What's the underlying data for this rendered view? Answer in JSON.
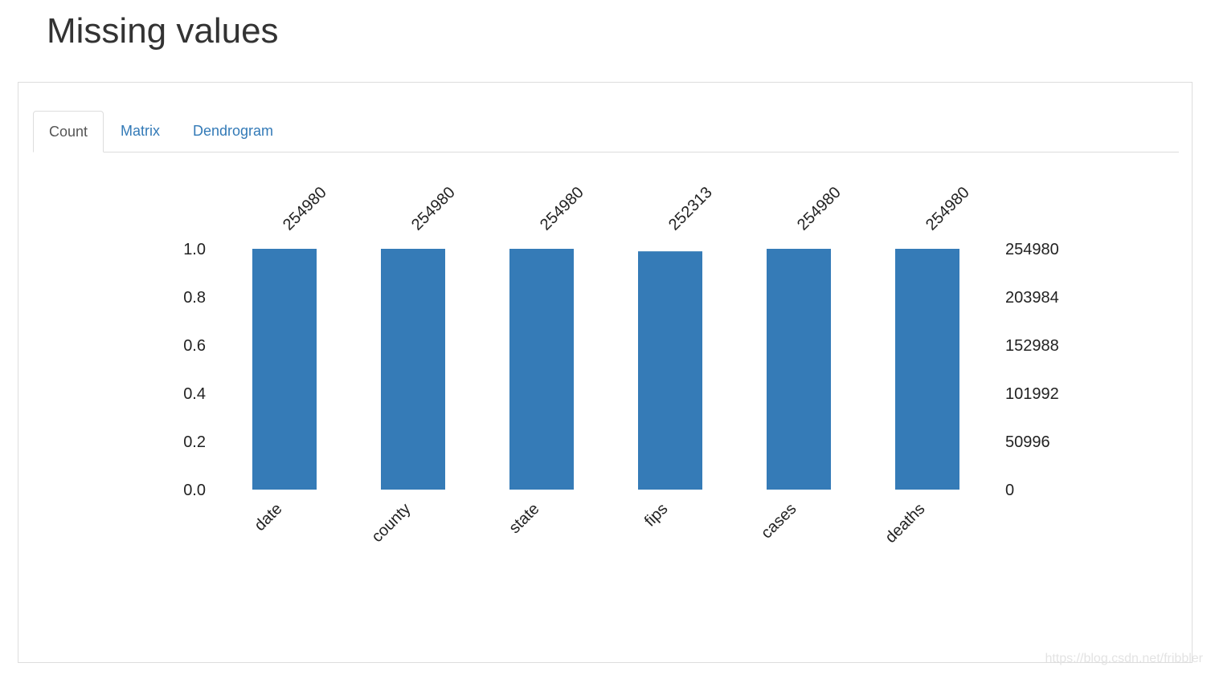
{
  "page": {
    "title": "Missing values"
  },
  "tabs": [
    {
      "label": "Count",
      "active": true
    },
    {
      "label": "Matrix",
      "active": false
    },
    {
      "label": "Dendrogram",
      "active": false
    }
  ],
  "watermark": "https://blog.csdn.net/fribbler",
  "colors": {
    "bar": "#357bb7",
    "tab_link": "#337ab7"
  },
  "chart_data": {
    "type": "bar",
    "categories": [
      "date",
      "county",
      "state",
      "fips",
      "cases",
      "deaths"
    ],
    "values": [
      254980,
      254980,
      254980,
      252313,
      254980,
      254980
    ],
    "total_rows": 254980,
    "left_axis": {
      "ylim": [
        0,
        1
      ],
      "ticks": [
        "0.0",
        "0.2",
        "0.4",
        "0.6",
        "0.8",
        "1.0"
      ]
    },
    "right_axis": {
      "ticks": [
        "0",
        "50996",
        "101992",
        "152988",
        "203984",
        "254980"
      ]
    },
    "data_labels": [
      "254980",
      "254980",
      "254980",
      "252313",
      "254980",
      "254980"
    ],
    "grid": false
  }
}
